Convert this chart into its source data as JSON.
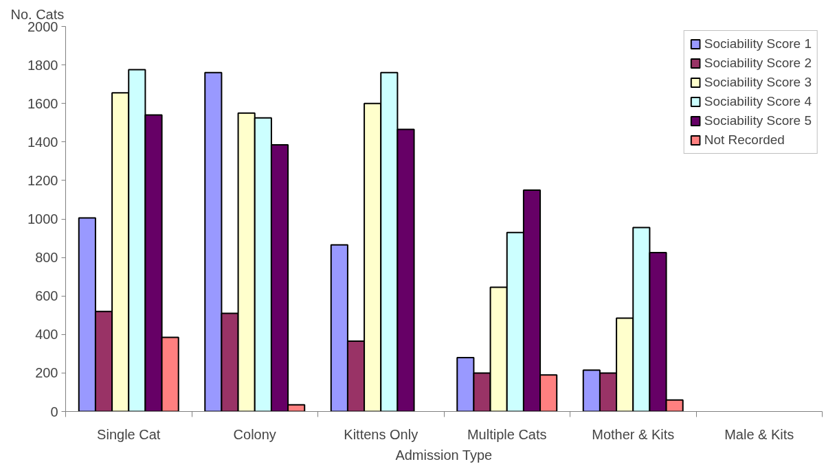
{
  "chart_data": {
    "type": "bar",
    "xlabel": "Admission Type",
    "ylabel": "No. Cats",
    "categories": [
      "Single Cat",
      "Colony",
      "Kittens Only",
      "Multiple Cats",
      "Mother & Kits",
      "Male & Kits"
    ],
    "series": [
      {
        "name": "Sociability Score 1",
        "color": "#9999ff",
        "values": [
          1005,
          1760,
          865,
          280,
          215,
          null
        ]
      },
      {
        "name": "Sociability Score 2",
        "color": "#993366",
        "values": [
          520,
          510,
          365,
          200,
          200,
          null
        ]
      },
      {
        "name": "Sociability Score 3",
        "color": "#ffffcc",
        "values": [
          1655,
          1550,
          1600,
          645,
          485,
          null
        ]
      },
      {
        "name": "Sociability Score 4",
        "color": "#ccffff",
        "values": [
          1775,
          1525,
          1760,
          930,
          955,
          null
        ]
      },
      {
        "name": "Sociability Score 5",
        "color": "#660066",
        "values": [
          1540,
          1385,
          1465,
          1150,
          825,
          null
        ]
      },
      {
        "name": "Not Recorded",
        "color": "#ff8080",
        "values": [
          385,
          35,
          null,
          190,
          60,
          null
        ]
      }
    ],
    "ylim": [
      0,
      2000
    ],
    "yticks": [
      0,
      200,
      400,
      600,
      800,
      1000,
      1200,
      1400,
      1600,
      1800,
      2000
    ],
    "grid": false,
    "legend": "top right"
  }
}
